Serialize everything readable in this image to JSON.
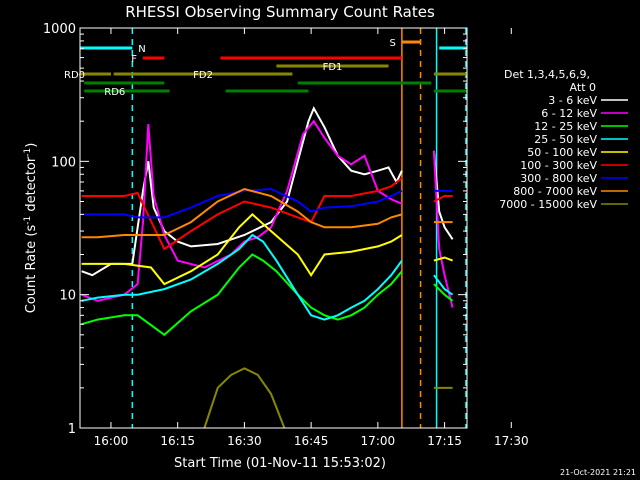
{
  "chart_data": {
    "type": "line",
    "title": "RHESSI Observing Summary Count Rates",
    "xlabel": "Start Time (01-Nov-11 15:53:02)",
    "ylabel": "Count Rate (s⁻¹ detector⁻¹)",
    "ylabel_main": "Count Rate (s",
    "ylabel_sup1": "-1",
    "ylabel_mid": " detector",
    "ylabel_sup2": "-1",
    "ylabel_end": ")",
    "yscale": "log",
    "xlim": [
      15.884,
      17.334
    ],
    "ylim": [
      1,
      1000
    ],
    "x_ticks": [
      {
        "t": 16.0,
        "label": "16:00"
      },
      {
        "t": 16.25,
        "label": "16:15"
      },
      {
        "t": 16.5,
        "label": "16:30"
      },
      {
        "t": 16.75,
        "label": "16:45"
      },
      {
        "t": 17.0,
        "label": "17:00"
      },
      {
        "t": 17.25,
        "label": "17:15"
      },
      {
        "t": 17.5,
        "label": "17:30"
      }
    ],
    "y_ticks": [
      {
        "v": 1,
        "label": "1"
      },
      {
        "v": 10,
        "label": "10"
      },
      {
        "v": 100,
        "label": "100"
      },
      {
        "v": 1000,
        "label": "1000"
      }
    ],
    "legend_header": [
      "Det 1,3,4,5,6,9,",
      "Att 0"
    ],
    "legend_position": "right",
    "footer": "21-Oct-2021 21:21",
    "gaps": [
      [
        17.09,
        17.21
      ],
      [
        17.29,
        17.34
      ]
    ],
    "series": [
      {
        "name": "3 - 6 keV",
        "color": "#ffffff",
        "points": [
          [
            15.89,
            15
          ],
          [
            15.93,
            14
          ],
          [
            16.0,
            17
          ],
          [
            16.08,
            17
          ],
          [
            16.12,
            60
          ],
          [
            16.14,
            100
          ],
          [
            16.16,
            45
          ],
          [
            16.2,
            30
          ],
          [
            16.25,
            25
          ],
          [
            16.3,
            23
          ],
          [
            16.4,
            24
          ],
          [
            16.5,
            28
          ],
          [
            16.6,
            35
          ],
          [
            16.66,
            50
          ],
          [
            16.7,
            100
          ],
          [
            16.74,
            200
          ],
          [
            16.76,
            250
          ],
          [
            16.8,
            180
          ],
          [
            16.85,
            110
          ],
          [
            16.9,
            85
          ],
          [
            16.95,
            80
          ],
          [
            17.0,
            85
          ],
          [
            17.04,
            90
          ],
          [
            17.07,
            70
          ],
          [
            17.09,
            85
          ]
        ],
        "after_gap": [
          [
            17.21,
            120
          ],
          [
            17.23,
            42
          ],
          [
            17.25,
            32
          ],
          [
            17.28,
            26
          ]
        ]
      },
      {
        "name": "6 - 12 keV",
        "color": "#ff00ff",
        "points": [
          [
            15.89,
            10
          ],
          [
            15.95,
            9
          ],
          [
            16.05,
            10
          ],
          [
            16.1,
            12
          ],
          [
            16.12,
            35
          ],
          [
            16.14,
            190
          ],
          [
            16.16,
            55
          ],
          [
            16.2,
            28
          ],
          [
            16.25,
            18
          ],
          [
            16.35,
            16
          ],
          [
            16.45,
            20
          ],
          [
            16.5,
            25
          ],
          [
            16.55,
            27
          ],
          [
            16.6,
            32
          ],
          [
            16.66,
            60
          ],
          [
            16.72,
            160
          ],
          [
            16.76,
            200
          ],
          [
            16.8,
            150
          ],
          [
            16.85,
            110
          ],
          [
            16.9,
            95
          ],
          [
            16.95,
            110
          ],
          [
            17.0,
            60
          ],
          [
            17.05,
            52
          ],
          [
            17.09,
            48
          ]
        ],
        "after_gap": [
          [
            17.21,
            120
          ],
          [
            17.23,
            22
          ],
          [
            17.25,
            14
          ],
          [
            17.28,
            8
          ]
        ]
      },
      {
        "name": "12 - 25 keV",
        "color": "#00ff00",
        "points": [
          [
            15.89,
            6
          ],
          [
            15.95,
            6.5
          ],
          [
            16.05,
            7
          ],
          [
            16.1,
            7
          ],
          [
            16.2,
            5
          ],
          [
            16.3,
            7.5
          ],
          [
            16.4,
            10
          ],
          [
            16.48,
            16
          ],
          [
            16.53,
            20
          ],
          [
            16.57,
            18
          ],
          [
            16.62,
            15
          ],
          [
            16.7,
            10
          ],
          [
            16.75,
            8
          ],
          [
            16.8,
            7
          ],
          [
            16.85,
            6.5
          ],
          [
            16.9,
            7
          ],
          [
            16.95,
            8
          ],
          [
            17.0,
            10
          ],
          [
            17.05,
            12
          ],
          [
            17.09,
            15
          ]
        ],
        "after_gap": [
          [
            17.21,
            12
          ],
          [
            17.25,
            10
          ],
          [
            17.28,
            9
          ]
        ]
      },
      {
        "name": "25 - 50 keV",
        "color": "#00ffff",
        "points": [
          [
            15.89,
            9
          ],
          [
            15.95,
            9.5
          ],
          [
            16.05,
            10
          ],
          [
            16.1,
            10
          ],
          [
            16.2,
            11
          ],
          [
            16.3,
            13
          ],
          [
            16.4,
            17
          ],
          [
            16.48,
            22
          ],
          [
            16.53,
            28
          ],
          [
            16.57,
            25
          ],
          [
            16.62,
            18
          ],
          [
            16.7,
            10
          ],
          [
            16.75,
            7
          ],
          [
            16.8,
            6.5
          ],
          [
            16.85,
            7
          ],
          [
            16.9,
            8
          ],
          [
            16.95,
            9
          ],
          [
            17.0,
            11
          ],
          [
            17.05,
            14
          ],
          [
            17.09,
            18
          ]
        ],
        "after_gap": [
          [
            17.21,
            14
          ],
          [
            17.25,
            11
          ],
          [
            17.28,
            10
          ]
        ]
      },
      {
        "name": "50 - 100 keV",
        "color": "#ffff00",
        "points": [
          [
            15.89,
            17
          ],
          [
            15.95,
            17
          ],
          [
            16.05,
            17
          ],
          [
            16.15,
            16
          ],
          [
            16.2,
            12
          ],
          [
            16.3,
            15
          ],
          [
            16.4,
            20
          ],
          [
            16.48,
            32
          ],
          [
            16.53,
            40
          ],
          [
            16.6,
            30
          ],
          [
            16.7,
            20
          ],
          [
            16.75,
            14
          ],
          [
            16.8,
            20
          ],
          [
            16.9,
            21
          ],
          [
            17.0,
            23
          ],
          [
            17.05,
            25
          ],
          [
            17.09,
            28
          ]
        ],
        "after_gap": [
          [
            17.21,
            18
          ],
          [
            17.25,
            19
          ],
          [
            17.28,
            18
          ]
        ]
      },
      {
        "name": "100 - 300 keV",
        "color": "#ff0000",
        "points": [
          [
            15.89,
            55
          ],
          [
            15.95,
            55
          ],
          [
            16.05,
            55
          ],
          [
            16.1,
            58
          ],
          [
            16.2,
            22
          ],
          [
            16.3,
            30
          ],
          [
            16.4,
            40
          ],
          [
            16.5,
            50
          ],
          [
            16.6,
            45
          ],
          [
            16.7,
            38
          ],
          [
            16.75,
            35
          ],
          [
            16.8,
            55
          ],
          [
            16.9,
            55
          ],
          [
            17.0,
            60
          ],
          [
            17.05,
            65
          ],
          [
            17.09,
            75
          ]
        ],
        "after_gap": [
          [
            17.21,
            50
          ],
          [
            17.25,
            55
          ],
          [
            17.28,
            55
          ]
        ]
      },
      {
        "name": "300 - 800 keV",
        "color": "#0000ff",
        "points": [
          [
            15.89,
            40
          ],
          [
            15.95,
            40
          ],
          [
            16.05,
            40
          ],
          [
            16.1,
            38
          ],
          [
            16.2,
            38
          ],
          [
            16.3,
            45
          ],
          [
            16.4,
            55
          ],
          [
            16.5,
            60
          ],
          [
            16.6,
            62
          ],
          [
            16.7,
            50
          ],
          [
            16.75,
            42
          ],
          [
            16.8,
            45
          ],
          [
            16.9,
            46
          ],
          [
            17.0,
            50
          ],
          [
            17.05,
            55
          ],
          [
            17.09,
            60
          ]
        ],
        "after_gap": [
          [
            17.21,
            60
          ],
          [
            17.25,
            60
          ],
          [
            17.28,
            60
          ]
        ]
      },
      {
        "name": "800 - 7000 keV",
        "color": "#ff8800",
        "points": [
          [
            15.89,
            27
          ],
          [
            15.95,
            27
          ],
          [
            16.05,
            28
          ],
          [
            16.1,
            28
          ],
          [
            16.2,
            28
          ],
          [
            16.3,
            35
          ],
          [
            16.4,
            50
          ],
          [
            16.5,
            62
          ],
          [
            16.6,
            55
          ],
          [
            16.7,
            42
          ],
          [
            16.75,
            35
          ],
          [
            16.8,
            32
          ],
          [
            16.9,
            32
          ],
          [
            17.0,
            34
          ],
          [
            17.05,
            38
          ],
          [
            17.09,
            40
          ]
        ],
        "after_gap": [
          [
            17.21,
            35
          ],
          [
            17.25,
            35
          ],
          [
            17.28,
            35
          ]
        ]
      },
      {
        "name": "7000 - 15000 keV",
        "color": "#888800",
        "points": [
          [
            16.35,
            1
          ],
          [
            16.4,
            2
          ],
          [
            16.45,
            2.5
          ],
          [
            16.5,
            2.8
          ],
          [
            16.55,
            2.5
          ],
          [
            16.6,
            1.8
          ],
          [
            16.65,
            1
          ]
        ],
        "after_gap": [
          [
            17.21,
            2
          ],
          [
            17.25,
            2
          ],
          [
            17.28,
            2
          ]
        ]
      }
    ],
    "flag_bars": [
      {
        "label": "N",
        "color": "#00ffff",
        "row": 0,
        "segments": [
          [
            15.884,
            16.08
          ],
          [
            17.23,
            17.334
          ]
        ]
      },
      {
        "label": "S",
        "color": "#ff8800",
        "row": 1,
        "segments": [
          [
            17.09,
            17.16
          ]
        ]
      },
      {
        "label": "F",
        "color": "#ff0000",
        "row": 2,
        "segments": [
          [
            16.12,
            16.2
          ]
        ]
      },
      {
        "label": "",
        "color": "#ff0000",
        "row": 2,
        "segments": [
          [
            16.41,
            17.09
          ]
        ]
      },
      {
        "label": "FD1",
        "color": "#888800",
        "row": 3,
        "segments": [
          [
            16.62,
            17.04
          ]
        ]
      },
      {
        "label": "FD2",
        "color": "#888800",
        "row": 4,
        "segments": [
          [
            16.01,
            16.68
          ],
          [
            17.21,
            17.334
          ]
        ]
      },
      {
        "label": "RD0",
        "color": "#888800",
        "row": 4,
        "segments": [
          [
            15.884,
            16.0
          ]
        ]
      },
      {
        "label": "",
        "color": "#008000",
        "row": 5,
        "segments": [
          [
            15.9,
            16.2
          ],
          [
            16.7,
            17.2
          ]
        ]
      },
      {
        "label": "RD6",
        "color": "#008000",
        "row": 6,
        "segments": [
          [
            15.9,
            16.22
          ],
          [
            16.43,
            16.74
          ],
          [
            17.21,
            17.334
          ]
        ]
      }
    ],
    "vlines": [
      {
        "t": 16.08,
        "color": "#00ffff",
        "dashed": true
      },
      {
        "t": 17.09,
        "color": "#ff8800",
        "dashed": false
      },
      {
        "t": 17.16,
        "color": "#ff8800",
        "dashed": true
      },
      {
        "t": 17.22,
        "color": "#00ffff",
        "dashed": false
      },
      {
        "t": 17.33,
        "color": "#00ffff",
        "dashed": true
      }
    ]
  }
}
